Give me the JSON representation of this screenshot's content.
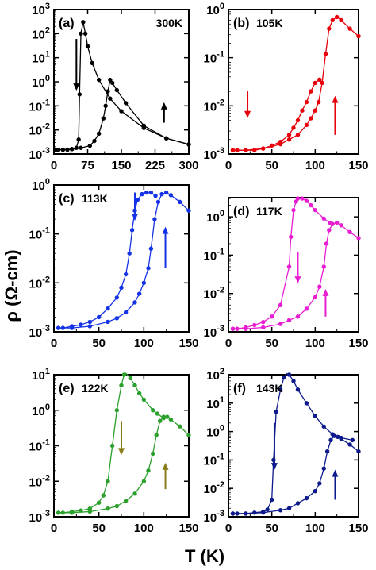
{
  "figure": {
    "ylabel": "ρ (Ω-cm)",
    "xlabel": "T (K)"
  },
  "chart_data": [
    {
      "type": "line",
      "panel_label": "(a)",
      "temperature_label": "300K",
      "color": "#000000",
      "xlim": [
        0,
        300
      ],
      "ylim_log10": [
        -3,
        3
      ],
      "xticks": [
        "0",
        "75",
        "150",
        "225",
        "300"
      ],
      "yticks": [
        "10^-3",
        "10^-2",
        "10^-1",
        "10^0",
        "10^1",
        "10^2",
        "10^3"
      ],
      "series": [
        {
          "direction": "cooling",
          "x": [
            300,
            250,
            200,
            150,
            125,
            100,
            85,
            75,
            70,
            65,
            60,
            57,
            55,
            50,
            40,
            30,
            20,
            10,
            5
          ],
          "y": [
            0.0025,
            0.0045,
            0.012,
            0.06,
            0.2,
            1.2,
            6,
            30,
            100,
            300,
            100,
            0.3,
            0.004,
            0.0018,
            0.0016,
            0.0015,
            0.0015,
            0.0015,
            0.0015
          ]
        },
        {
          "direction": "warming",
          "x": [
            5,
            20,
            40,
            60,
            80,
            90,
            100,
            110,
            115,
            120,
            125,
            130,
            140,
            160,
            200,
            250,
            300
          ],
          "y": [
            0.0015,
            0.0015,
            0.0016,
            0.0018,
            0.0022,
            0.0035,
            0.007,
            0.03,
            0.1,
            0.4,
            1.2,
            0.9,
            0.45,
            0.13,
            0.015,
            0.0045,
            0.0025
          ]
        }
      ]
    },
    {
      "type": "line",
      "panel_label": "(b)",
      "temperature_label": "105K",
      "color": "#e8000b",
      "xlim": [
        0,
        150
      ],
      "ylim_log10": [
        -3,
        0
      ],
      "xticks": [
        "0",
        "50",
        "100",
        "150"
      ],
      "yticks": [
        "10^-3",
        "10^-2",
        "10^-1",
        "10^0"
      ],
      "series": [
        {
          "direction": "cooling",
          "x": [
            105,
            100,
            95,
            90,
            85,
            80,
            75,
            70,
            60,
            50,
            40,
            30,
            20,
            10,
            5
          ],
          "y": [
            0.035,
            0.03,
            0.02,
            0.012,
            0.008,
            0.005,
            0.0035,
            0.0025,
            0.0018,
            0.0015,
            0.0013,
            0.0012,
            0.0012,
            0.0012,
            0.0012
          ]
        },
        {
          "direction": "warming",
          "x": [
            5,
            20,
            40,
            60,
            70,
            80,
            90,
            95,
            100,
            104,
            108,
            112,
            116,
            120,
            125,
            130,
            140,
            150
          ],
          "y": [
            0.0012,
            0.0012,
            0.0013,
            0.0016,
            0.002,
            0.0025,
            0.004,
            0.0055,
            0.008,
            0.012,
            0.03,
            0.12,
            0.4,
            0.6,
            0.7,
            0.6,
            0.4,
            0.28
          ]
        }
      ]
    },
    {
      "type": "line",
      "panel_label": "(c)",
      "temperature_label": "113K",
      "color": "#1433e6",
      "xlim": [
        0,
        150
      ],
      "ylim_log10": [
        -3,
        0
      ],
      "xticks": [
        "0",
        "50",
        "100",
        "150"
      ],
      "yticks": [
        "10^-3",
        "10^-2",
        "10^-1",
        "10^0"
      ],
      "series": [
        {
          "direction": "cooling",
          "x": [
            113,
            108,
            103,
            98,
            93,
            90,
            87,
            84,
            80,
            75,
            70,
            60,
            50,
            40,
            30,
            20,
            10,
            5
          ],
          "y": [
            0.6,
            0.7,
            0.7,
            0.65,
            0.5,
            0.3,
            0.12,
            0.04,
            0.015,
            0.008,
            0.005,
            0.003,
            0.002,
            0.0016,
            0.0014,
            0.0013,
            0.0012,
            0.0012
          ]
        },
        {
          "direction": "warming",
          "x": [
            5,
            20,
            40,
            60,
            70,
            80,
            90,
            95,
            100,
            105,
            108,
            112,
            116,
            120,
            125,
            130,
            140,
            150
          ],
          "y": [
            0.0012,
            0.0012,
            0.0013,
            0.0016,
            0.0019,
            0.0025,
            0.004,
            0.006,
            0.01,
            0.02,
            0.05,
            0.2,
            0.45,
            0.65,
            0.7,
            0.62,
            0.45,
            0.3
          ]
        }
      ]
    },
    {
      "type": "line",
      "panel_label": "(d)",
      "temperature_label": "117K",
      "color": "#e81ed2",
      "xlim": [
        0,
        150
      ],
      "ylim_log10": [
        -3,
        0.5
      ],
      "xticks": [
        "0",
        "50",
        "100",
        "150"
      ],
      "yticks": [
        "10^-3",
        "10^-2",
        "10^-1",
        "10^0"
      ],
      "series": [
        {
          "direction": "cooling",
          "x": [
            117,
            110,
            100,
            95,
            90,
            85,
            80,
            78,
            75,
            72,
            70,
            60,
            50,
            40,
            30,
            20,
            10,
            5
          ],
          "y": [
            0.7,
            0.9,
            1.5,
            2,
            2.6,
            3,
            3,
            2.5,
            1.5,
            0.3,
            0.05,
            0.005,
            0.0025,
            0.0018,
            0.0015,
            0.0013,
            0.0012,
            0.0012
          ]
        },
        {
          "direction": "warming",
          "x": [
            5,
            20,
            40,
            60,
            70,
            80,
            90,
            100,
            105,
            110,
            113,
            116,
            120,
            125,
            130,
            140,
            150
          ],
          "y": [
            0.0012,
            0.0012,
            0.0013,
            0.0016,
            0.002,
            0.0025,
            0.004,
            0.008,
            0.015,
            0.05,
            0.2,
            0.45,
            0.65,
            0.7,
            0.6,
            0.4,
            0.28
          ]
        }
      ]
    },
    {
      "type": "line",
      "panel_label": "(e)",
      "temperature_label": "122K",
      "color": "#2ca02c",
      "xlim": [
        0,
        150
      ],
      "ylim_log10": [
        -3,
        1
      ],
      "xticks": [
        "0",
        "50",
        "100",
        "150"
      ],
      "yticks": [
        "10^-3",
        "10^-2",
        "10^-1",
        "10^0",
        "10^1"
      ],
      "series": [
        {
          "direction": "cooling",
          "x": [
            122,
            115,
            110,
            100,
            95,
            90,
            85,
            80,
            78,
            75,
            70,
            65,
            60,
            55,
            50,
            40,
            30,
            20,
            10,
            5
          ],
          "y": [
            0.6,
            0.8,
            1,
            2,
            3,
            5,
            8,
            11,
            10,
            5,
            1,
            0.1,
            0.01,
            0.004,
            0.0025,
            0.0017,
            0.0015,
            0.0014,
            0.0013,
            0.0013
          ]
        },
        {
          "direction": "warming",
          "x": [
            5,
            20,
            40,
            60,
            70,
            80,
            90,
            100,
            105,
            110,
            114,
            118,
            122,
            126,
            130,
            140,
            150
          ],
          "y": [
            0.0013,
            0.0013,
            0.0014,
            0.0017,
            0.002,
            0.0028,
            0.0045,
            0.01,
            0.02,
            0.06,
            0.2,
            0.5,
            0.65,
            0.65,
            0.55,
            0.35,
            0.2
          ]
        }
      ]
    },
    {
      "type": "line",
      "panel_label": "(f)",
      "temperature_label": "143K",
      "color": "#0d1a8c",
      "xlim": [
        0,
        150
      ],
      "ylim_log10": [
        -3,
        2
      ],
      "xticks": [
        "0",
        "50",
        "100",
        "150"
      ],
      "yticks": [
        "10^-3",
        "10^-2",
        "10^-1",
        "10^0",
        "10^1",
        "10^2"
      ],
      "series": [
        {
          "direction": "cooling",
          "x": [
            143,
            130,
            120,
            110,
            100,
            90,
            80,
            75,
            70,
            67,
            64,
            60,
            55,
            52,
            50,
            45,
            40,
            30,
            20,
            10,
            5
          ],
          "y": [
            0.5,
            0.6,
            0.8,
            1.5,
            3.5,
            10,
            30,
            60,
            100,
            110,
            80,
            30,
            5,
            0.1,
            0.004,
            0.0018,
            0.0015,
            0.0014,
            0.0013,
            0.0013,
            0.0013
          ]
        },
        {
          "direction": "warming",
          "x": [
            5,
            20,
            40,
            60,
            70,
            80,
            90,
            100,
            105,
            110,
            114,
            118,
            122,
            126,
            130,
            140,
            150
          ],
          "y": [
            0.0013,
            0.0013,
            0.0014,
            0.0017,
            0.002,
            0.003,
            0.0045,
            0.008,
            0.015,
            0.05,
            0.2,
            0.5,
            0.7,
            0.65,
            0.55,
            0.35,
            0.2
          ]
        }
      ]
    }
  ]
}
